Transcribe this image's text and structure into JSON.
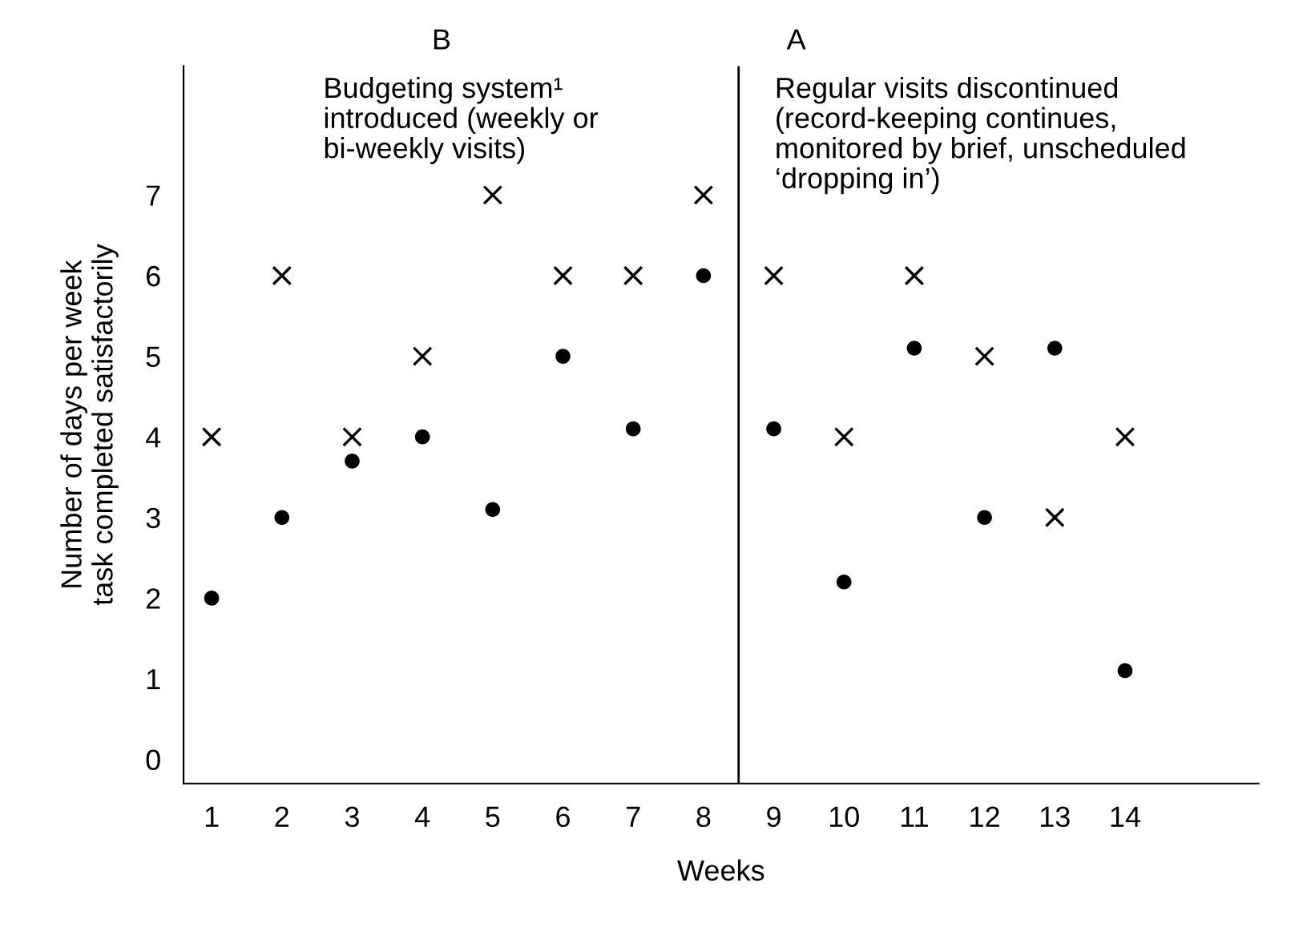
{
  "chart_data": {
    "type": "scatter",
    "xlabel": "Weeks",
    "ylabel": "Number of days per week\ntask completed satisfactorily",
    "x": [
      1,
      2,
      3,
      4,
      5,
      6,
      7,
      8,
      9,
      10,
      11,
      12,
      13,
      14
    ],
    "series": [
      {
        "color": "#000000",
        "marker": "cross",
        "values": [
          4,
          6,
          4,
          5,
          7,
          6,
          6,
          7,
          6,
          4,
          6,
          5,
          3,
          4
        ]
      },
      {
        "color": "#000000",
        "marker": "circle",
        "values": [
          2,
          3,
          3.7,
          4,
          3.1,
          5,
          4.1,
          6,
          4.1,
          2.2,
          5.1,
          3,
          5.1,
          1.1
        ]
      }
    ],
    "xlim": [
      0.6,
      15.9
    ],
    "ylim": [
      -0.3,
      8.6
    ],
    "xticks": [
      1,
      2,
      3,
      4,
      5,
      6,
      7,
      8,
      9,
      10,
      11,
      12,
      13,
      14
    ],
    "yticks": [
      0,
      1,
      2,
      3,
      4,
      5,
      6,
      7
    ],
    "ref_lines": [
      {
        "axis": "x",
        "value": 8.5,
        "color": "#000000"
      }
    ],
    "annotations": [
      "B",
      "Budgeting system¹\nintroduced (weekly or\nbi-weekly visits)",
      "A",
      "Regular visits discontinued\n(record-keeping continues,\nmonitored by brief, unscheduled\n‘dropping in’)"
    ],
    "grid": false,
    "legend": false
  }
}
